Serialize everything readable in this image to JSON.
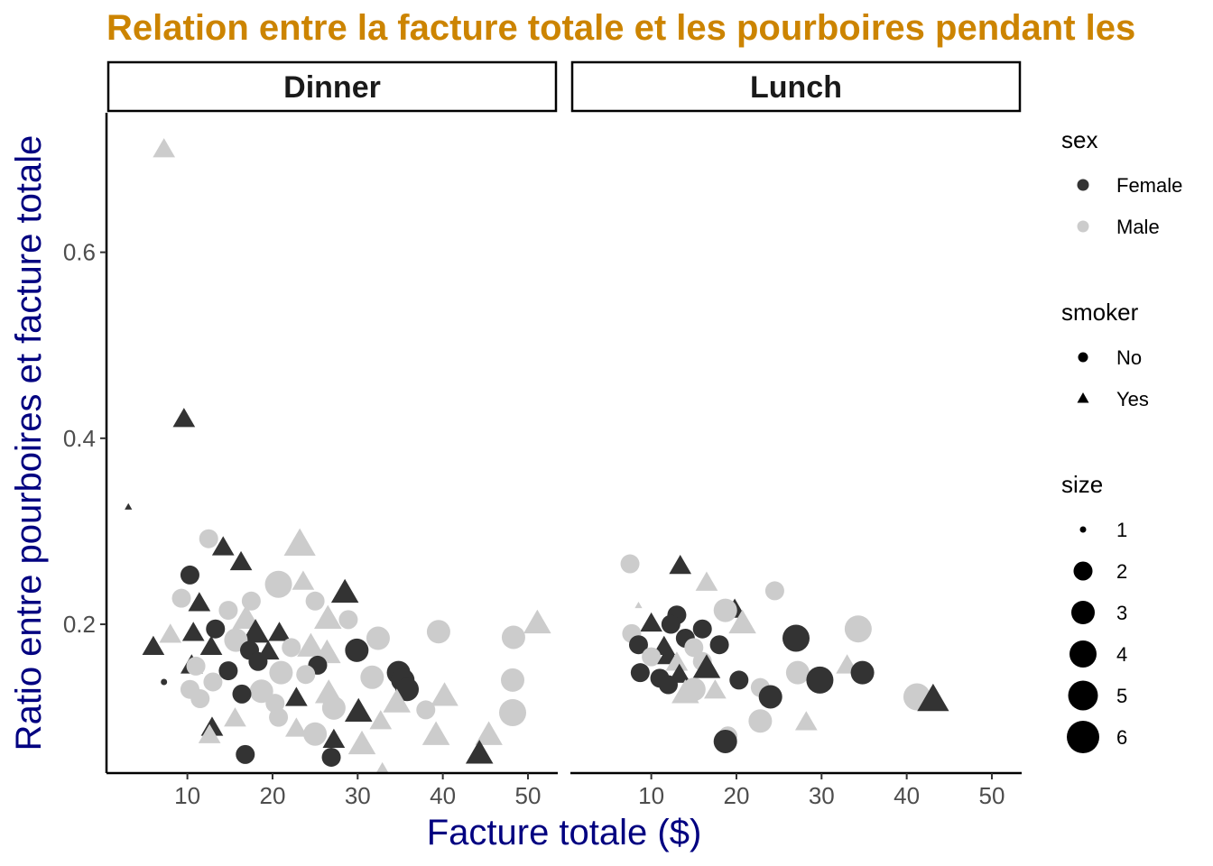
{
  "chart_data": {
    "type": "scatter",
    "title": "Relation entre la facture totale et les pourboires pendant les",
    "xlabel": "Facture totale ($)",
    "ylabel": "Ratio entre pourboires et facture totale",
    "xlim": [
      0.5,
      53.5
    ],
    "ylim": [
      0.04,
      0.75
    ],
    "x_ticks": [
      10,
      20,
      30,
      40,
      50
    ],
    "y_ticks": [
      0.2,
      0.4,
      0.6
    ],
    "facets": [
      "Dinner",
      "Lunch"
    ],
    "colors": {
      "title": "#cc8400",
      "axis_title": "#000080",
      "Female": "#333333",
      "Male": "#cccccc"
    },
    "legend": {
      "placement": "right",
      "sex": {
        "title": "sex",
        "items": [
          "Female",
          "Male"
        ]
      },
      "smoker": {
        "title": "smoker",
        "items": [
          "No",
          "Yes"
        ]
      },
      "size": {
        "title": "size",
        "items": [
          "1",
          "2",
          "3",
          "4",
          "5",
          "6"
        ]
      }
    },
    "series": [
      {
        "facet": "Dinner",
        "sex": "Male",
        "smoker": "Yes",
        "x": 7.25,
        "y": 0.71,
        "size": 2
      },
      {
        "facet": "Dinner",
        "sex": "Female",
        "smoker": "Yes",
        "x": 9.6,
        "y": 0.42,
        "size": 2
      },
      {
        "facet": "Dinner",
        "sex": "Female",
        "smoker": "Yes",
        "x": 3.07,
        "y": 0.326,
        "size": 1
      },
      {
        "facet": "Dinner",
        "sex": "Male",
        "smoker": "Yes",
        "x": 23.2,
        "y": 0.285,
        "size": 4
      },
      {
        "facet": "Dinner",
        "sex": "Male",
        "smoker": "No",
        "x": 12.5,
        "y": 0.292,
        "size": 2
      },
      {
        "facet": "Dinner",
        "sex": "Female",
        "smoker": "Yes",
        "x": 14.2,
        "y": 0.282,
        "size": 2
      },
      {
        "facet": "Dinner",
        "sex": "Female",
        "smoker": "Yes",
        "x": 16.3,
        "y": 0.266,
        "size": 2
      },
      {
        "facet": "Dinner",
        "sex": "Female",
        "smoker": "No",
        "x": 10.3,
        "y": 0.253,
        "size": 2
      },
      {
        "facet": "Dinner",
        "sex": "Male",
        "smoker": "No",
        "x": 20.7,
        "y": 0.243,
        "size": 4
      },
      {
        "facet": "Dinner",
        "sex": "Female",
        "smoker": "Yes",
        "x": 28.5,
        "y": 0.233,
        "size": 3
      },
      {
        "facet": "Dinner",
        "sex": "Male",
        "smoker": "Yes",
        "x": 23.6,
        "y": 0.245,
        "size": 2
      },
      {
        "facet": "Dinner",
        "sex": "Male",
        "smoker": "No",
        "x": 9.3,
        "y": 0.228,
        "size": 2
      },
      {
        "facet": "Dinner",
        "sex": "Female",
        "smoker": "Yes",
        "x": 11.4,
        "y": 0.222,
        "size": 2
      },
      {
        "facet": "Dinner",
        "sex": "Male",
        "smoker": "No",
        "x": 17.5,
        "y": 0.225,
        "size": 2
      },
      {
        "facet": "Dinner",
        "sex": "Male",
        "smoker": "No",
        "x": 25.0,
        "y": 0.225,
        "size": 2
      },
      {
        "facet": "Dinner",
        "sex": "Male",
        "smoker": "No",
        "x": 14.8,
        "y": 0.215,
        "size": 2
      },
      {
        "facet": "Dinner",
        "sex": "Male",
        "smoker": "Yes",
        "x": 16.9,
        "y": 0.205,
        "size": 3
      },
      {
        "facet": "Dinner",
        "sex": "Male",
        "smoker": "Yes",
        "x": 26.5,
        "y": 0.205,
        "size": 3
      },
      {
        "facet": "Dinner",
        "sex": "Male",
        "smoker": "No",
        "x": 28.9,
        "y": 0.205,
        "size": 2
      },
      {
        "facet": "Dinner",
        "sex": "Male",
        "smoker": "Yes",
        "x": 51.1,
        "y": 0.2,
        "size": 3
      },
      {
        "facet": "Dinner",
        "sex": "Female",
        "smoker": "No",
        "x": 13.3,
        "y": 0.195,
        "size": 2
      },
      {
        "facet": "Dinner",
        "sex": "Male",
        "smoker": "No",
        "x": 39.5,
        "y": 0.192,
        "size": 3
      },
      {
        "facet": "Dinner",
        "sex": "Female",
        "smoker": "Yes",
        "x": 10.7,
        "y": 0.19,
        "size": 2
      },
      {
        "facet": "Dinner",
        "sex": "Male",
        "smoker": "Yes",
        "x": 8.0,
        "y": 0.188,
        "size": 2
      },
      {
        "facet": "Dinner",
        "sex": "Female",
        "smoker": "Yes",
        "x": 18.0,
        "y": 0.19,
        "size": 3
      },
      {
        "facet": "Dinner",
        "sex": "Female",
        "smoker": "Yes",
        "x": 20.8,
        "y": 0.19,
        "size": 2
      },
      {
        "facet": "Dinner",
        "sex": "Male",
        "smoker": "No",
        "x": 32.4,
        "y": 0.185,
        "size": 3
      },
      {
        "facet": "Dinner",
        "sex": "Male",
        "smoker": "No",
        "x": 48.3,
        "y": 0.186,
        "size": 3
      },
      {
        "facet": "Dinner",
        "sex": "Male",
        "smoker": "No",
        "x": 15.7,
        "y": 0.183,
        "size": 3
      },
      {
        "facet": "Dinner",
        "sex": "Female",
        "smoker": "Yes",
        "x": 6.0,
        "y": 0.175,
        "size": 2
      },
      {
        "facet": "Dinner",
        "sex": "Female",
        "smoker": "Yes",
        "x": 12.8,
        "y": 0.175,
        "size": 2
      },
      {
        "facet": "Dinner",
        "sex": "Female",
        "smoker": "No",
        "x": 29.9,
        "y": 0.172,
        "size": 3
      },
      {
        "facet": "Dinner",
        "sex": "Female",
        "smoker": "No",
        "x": 17.3,
        "y": 0.172,
        "size": 2
      },
      {
        "facet": "Dinner",
        "sex": "Female",
        "smoker": "Yes",
        "x": 19.5,
        "y": 0.17,
        "size": 2
      },
      {
        "facet": "Dinner",
        "sex": "Male",
        "smoker": "No",
        "x": 22.2,
        "y": 0.175,
        "size": 2
      },
      {
        "facet": "Dinner",
        "sex": "Male",
        "smoker": "Yes",
        "x": 24.5,
        "y": 0.175,
        "size": 3
      },
      {
        "facet": "Dinner",
        "sex": "Male",
        "smoker": "Yes",
        "x": 26.4,
        "y": 0.168,
        "size": 3
      },
      {
        "facet": "Dinner",
        "sex": "Female",
        "smoker": "No",
        "x": 18.3,
        "y": 0.16,
        "size": 2
      },
      {
        "facet": "Dinner",
        "sex": "Female",
        "smoker": "No",
        "x": 25.3,
        "y": 0.156,
        "size": 2
      },
      {
        "facet": "Dinner",
        "sex": "Female",
        "smoker": "Yes",
        "x": 10.5,
        "y": 0.155,
        "size": 2
      },
      {
        "facet": "Dinner",
        "sex": "Male",
        "smoker": "No",
        "x": 11.0,
        "y": 0.155,
        "size": 2
      },
      {
        "facet": "Dinner",
        "sex": "Female",
        "smoker": "No",
        "x": 34.8,
        "y": 0.148,
        "size": 3
      },
      {
        "facet": "Dinner",
        "sex": "Male",
        "smoker": "No",
        "x": 21.0,
        "y": 0.148,
        "size": 3
      },
      {
        "facet": "Dinner",
        "sex": "Female",
        "smoker": "No",
        "x": 14.8,
        "y": 0.15,
        "size": 2
      },
      {
        "facet": "Dinner",
        "sex": "Male",
        "smoker": "No",
        "x": 23.9,
        "y": 0.146,
        "size": 2
      },
      {
        "facet": "Dinner",
        "sex": "Male",
        "smoker": "No",
        "x": 31.7,
        "y": 0.143,
        "size": 3
      },
      {
        "facet": "Dinner",
        "sex": "Male",
        "smoker": "No",
        "x": 48.2,
        "y": 0.14,
        "size": 3
      },
      {
        "facet": "Dinner",
        "sex": "Female",
        "smoker": "No",
        "x": 35.3,
        "y": 0.14,
        "size": 3
      },
      {
        "facet": "Dinner",
        "sex": "Male",
        "smoker": "No",
        "x": 13.0,
        "y": 0.138,
        "size": 2
      },
      {
        "facet": "Dinner",
        "sex": "Female",
        "smoker": "No",
        "x": 7.25,
        "y": 0.138,
        "size": 1
      },
      {
        "facet": "Dinner",
        "sex": "Female",
        "smoker": "No",
        "x": 35.8,
        "y": 0.13,
        "size": 3
      },
      {
        "facet": "Dinner",
        "sex": "Male",
        "smoker": "No",
        "x": 10.3,
        "y": 0.13,
        "size": 2
      },
      {
        "facet": "Dinner",
        "sex": "Male",
        "smoker": "No",
        "x": 18.7,
        "y": 0.128,
        "size": 3
      },
      {
        "facet": "Dinner",
        "sex": "Male",
        "smoker": "Yes",
        "x": 26.6,
        "y": 0.125,
        "size": 3
      },
      {
        "facet": "Dinner",
        "sex": "Female",
        "smoker": "No",
        "x": 16.4,
        "y": 0.125,
        "size": 2
      },
      {
        "facet": "Dinner",
        "sex": "Female",
        "smoker": "Yes",
        "x": 22.8,
        "y": 0.12,
        "size": 2
      },
      {
        "facet": "Dinner",
        "sex": "Male",
        "smoker": "No",
        "x": 11.5,
        "y": 0.12,
        "size": 2
      },
      {
        "facet": "Dinner",
        "sex": "Male",
        "smoker": "Yes",
        "x": 40.2,
        "y": 0.122,
        "size": 3
      },
      {
        "facet": "Dinner",
        "sex": "Male",
        "smoker": "No",
        "x": 20.3,
        "y": 0.115,
        "size": 2
      },
      {
        "facet": "Dinner",
        "sex": "Male",
        "smoker": "Yes",
        "x": 34.6,
        "y": 0.115,
        "size": 3
      },
      {
        "facet": "Dinner",
        "sex": "Male",
        "smoker": "No",
        "x": 27.2,
        "y": 0.11,
        "size": 3
      },
      {
        "facet": "Dinner",
        "sex": "Male",
        "smoker": "No",
        "x": 38.0,
        "y": 0.108,
        "size": 2
      },
      {
        "facet": "Dinner",
        "sex": "Female",
        "smoker": "Yes",
        "x": 30.1,
        "y": 0.105,
        "size": 3
      },
      {
        "facet": "Dinner",
        "sex": "Male",
        "smoker": "No",
        "x": 48.2,
        "y": 0.105,
        "size": 4
      },
      {
        "facet": "Dinner",
        "sex": "Male",
        "smoker": "No",
        "x": 20.7,
        "y": 0.1,
        "size": 2
      },
      {
        "facet": "Dinner",
        "sex": "Male",
        "smoker": "Yes",
        "x": 15.6,
        "y": 0.098,
        "size": 2
      },
      {
        "facet": "Dinner",
        "sex": "Male",
        "smoker": "Yes",
        "x": 32.7,
        "y": 0.095,
        "size": 2
      },
      {
        "facet": "Dinner",
        "sex": "Female",
        "smoker": "Yes",
        "x": 12.9,
        "y": 0.088,
        "size": 2
      },
      {
        "facet": "Dinner",
        "sex": "Male",
        "smoker": "Yes",
        "x": 22.8,
        "y": 0.087,
        "size": 2
      },
      {
        "facet": "Dinner",
        "sex": "Male",
        "smoker": "No",
        "x": 25.0,
        "y": 0.082,
        "size": 3
      },
      {
        "facet": "Dinner",
        "sex": "Male",
        "smoker": "Yes",
        "x": 45.4,
        "y": 0.08,
        "size": 3
      },
      {
        "facet": "Dinner",
        "sex": "Male",
        "smoker": "Yes",
        "x": 39.2,
        "y": 0.08,
        "size": 3
      },
      {
        "facet": "Dinner",
        "sex": "Male",
        "smoker": "Yes",
        "x": 12.6,
        "y": 0.08,
        "size": 2
      },
      {
        "facet": "Dinner",
        "sex": "Female",
        "smoker": "Yes",
        "x": 27.2,
        "y": 0.075,
        "size": 2
      },
      {
        "facet": "Dinner",
        "sex": "Male",
        "smoker": "Yes",
        "x": 30.5,
        "y": 0.07,
        "size": 3
      },
      {
        "facet": "Dinner",
        "sex": "Female",
        "smoker": "No",
        "x": 16.8,
        "y": 0.06,
        "size": 2
      },
      {
        "facet": "Dinner",
        "sex": "Female",
        "smoker": "No",
        "x": 26.9,
        "y": 0.057,
        "size": 2
      },
      {
        "facet": "Dinner",
        "sex": "Female",
        "smoker": "Yes",
        "x": 44.3,
        "y": 0.06,
        "size": 3
      },
      {
        "facet": "Dinner",
        "sex": "Male",
        "smoker": "Yes",
        "x": 32.9,
        "y": 0.039,
        "size": 2
      },
      {
        "facet": "Lunch",
        "sex": "Male",
        "smoker": "No",
        "x": 7.5,
        "y": 0.265,
        "size": 2
      },
      {
        "facet": "Lunch",
        "sex": "Female",
        "smoker": "Yes",
        "x": 13.4,
        "y": 0.262,
        "size": 2
      },
      {
        "facet": "Lunch",
        "sex": "Male",
        "smoker": "Yes",
        "x": 16.5,
        "y": 0.244,
        "size": 2
      },
      {
        "facet": "Lunch",
        "sex": "Male",
        "smoker": "No",
        "x": 24.5,
        "y": 0.236,
        "size": 2
      },
      {
        "facet": "Lunch",
        "sex": "Male",
        "smoker": "Yes",
        "x": 8.5,
        "y": 0.22,
        "size": 1
      },
      {
        "facet": "Lunch",
        "sex": "Female",
        "smoker": "Yes",
        "x": 19.8,
        "y": 0.215,
        "size": 2
      },
      {
        "facet": "Lunch",
        "sex": "Male",
        "smoker": "No",
        "x": 18.7,
        "y": 0.215,
        "size": 3
      },
      {
        "facet": "Lunch",
        "sex": "Female",
        "smoker": "No",
        "x": 13.0,
        "y": 0.21,
        "size": 2
      },
      {
        "facet": "Lunch",
        "sex": "Female",
        "smoker": "No",
        "x": 12.3,
        "y": 0.2,
        "size": 2
      },
      {
        "facet": "Lunch",
        "sex": "Female",
        "smoker": "Yes",
        "x": 10.0,
        "y": 0.2,
        "size": 2
      },
      {
        "facet": "Lunch",
        "sex": "Male",
        "smoker": "Yes",
        "x": 20.7,
        "y": 0.2,
        "size": 3
      },
      {
        "facet": "Lunch",
        "sex": "Male",
        "smoker": "No",
        "x": 34.3,
        "y": 0.195,
        "size": 4
      },
      {
        "facet": "Lunch",
        "sex": "Female",
        "smoker": "No",
        "x": 16.0,
        "y": 0.195,
        "size": 2
      },
      {
        "facet": "Lunch",
        "sex": "Male",
        "smoker": "No",
        "x": 7.7,
        "y": 0.19,
        "size": 2
      },
      {
        "facet": "Lunch",
        "sex": "Female",
        "smoker": "No",
        "x": 27.0,
        "y": 0.185,
        "size": 4
      },
      {
        "facet": "Lunch",
        "sex": "Female",
        "smoker": "No",
        "x": 14.0,
        "y": 0.185,
        "size": 2
      },
      {
        "facet": "Lunch",
        "sex": "Female",
        "smoker": "No",
        "x": 8.5,
        "y": 0.178,
        "size": 2
      },
      {
        "facet": "Lunch",
        "sex": "Female",
        "smoker": "Yes",
        "x": 11.5,
        "y": 0.175,
        "size": 2
      },
      {
        "facet": "Lunch",
        "sex": "Male",
        "smoker": "No",
        "x": 15.0,
        "y": 0.175,
        "size": 2
      },
      {
        "facet": "Lunch",
        "sex": "Female",
        "smoker": "No",
        "x": 18.0,
        "y": 0.178,
        "size": 2
      },
      {
        "facet": "Lunch",
        "sex": "Male",
        "smoker": "No",
        "x": 10.0,
        "y": 0.165,
        "size": 2
      },
      {
        "facet": "Lunch",
        "sex": "Female",
        "smoker": "Yes",
        "x": 12.0,
        "y": 0.165,
        "size": 2
      },
      {
        "facet": "Lunch",
        "sex": "Male",
        "smoker": "Yes",
        "x": 13.0,
        "y": 0.158,
        "size": 2
      },
      {
        "facet": "Lunch",
        "sex": "Male",
        "smoker": "No",
        "x": 16.0,
        "y": 0.16,
        "size": 2
      },
      {
        "facet": "Lunch",
        "sex": "Male",
        "smoker": "Yes",
        "x": 33.0,
        "y": 0.155,
        "size": 2
      },
      {
        "facet": "Lunch",
        "sex": "Female",
        "smoker": "Yes",
        "x": 16.5,
        "y": 0.152,
        "size": 3
      },
      {
        "facet": "Lunch",
        "sex": "Female",
        "smoker": "No",
        "x": 34.8,
        "y": 0.148,
        "size": 3
      },
      {
        "facet": "Lunch",
        "sex": "Male",
        "smoker": "No",
        "x": 27.2,
        "y": 0.148,
        "size": 3
      },
      {
        "facet": "Lunch",
        "sex": "Female",
        "smoker": "No",
        "x": 8.7,
        "y": 0.148,
        "size": 2
      },
      {
        "facet": "Lunch",
        "sex": "Female",
        "smoker": "Yes",
        "x": 13.3,
        "y": 0.145,
        "size": 2
      },
      {
        "facet": "Lunch",
        "sex": "Female",
        "smoker": "No",
        "x": 29.8,
        "y": 0.14,
        "size": 4
      },
      {
        "facet": "Lunch",
        "sex": "Female",
        "smoker": "No",
        "x": 11.0,
        "y": 0.142,
        "size": 2
      },
      {
        "facet": "Lunch",
        "sex": "Female",
        "smoker": "No",
        "x": 20.3,
        "y": 0.14,
        "size": 2
      },
      {
        "facet": "Lunch",
        "sex": "Female",
        "smoker": "No",
        "x": 12.0,
        "y": 0.135,
        "size": 2
      },
      {
        "facet": "Lunch",
        "sex": "Male",
        "smoker": "No",
        "x": 22.8,
        "y": 0.132,
        "size": 2
      },
      {
        "facet": "Lunch",
        "sex": "Male",
        "smoker": "No",
        "x": 15.0,
        "y": 0.13,
        "size": 3
      },
      {
        "facet": "Lunch",
        "sex": "Male",
        "smoker": "Yes",
        "x": 17.5,
        "y": 0.128,
        "size": 2
      },
      {
        "facet": "Lunch",
        "sex": "Male",
        "smoker": "No",
        "x": 41.2,
        "y": 0.122,
        "size": 4
      },
      {
        "facet": "Lunch",
        "sex": "Male",
        "smoker": "Yes",
        "x": 14.0,
        "y": 0.125,
        "size": 3
      },
      {
        "facet": "Lunch",
        "sex": "Female",
        "smoker": "No",
        "x": 24.0,
        "y": 0.122,
        "size": 3
      },
      {
        "facet": "Lunch",
        "sex": "Female",
        "smoker": "Yes",
        "x": 43.1,
        "y": 0.118,
        "size": 4
      },
      {
        "facet": "Lunch",
        "sex": "Male",
        "smoker": "No",
        "x": 22.8,
        "y": 0.096,
        "size": 3
      },
      {
        "facet": "Lunch",
        "sex": "Male",
        "smoker": "Yes",
        "x": 28.2,
        "y": 0.094,
        "size": 2
      },
      {
        "facet": "Lunch",
        "sex": "Male",
        "smoker": "No",
        "x": 19.0,
        "y": 0.08,
        "size": 2
      },
      {
        "facet": "Lunch",
        "sex": "Female",
        "smoker": "No",
        "x": 18.7,
        "y": 0.074,
        "size": 3
      }
    ]
  }
}
